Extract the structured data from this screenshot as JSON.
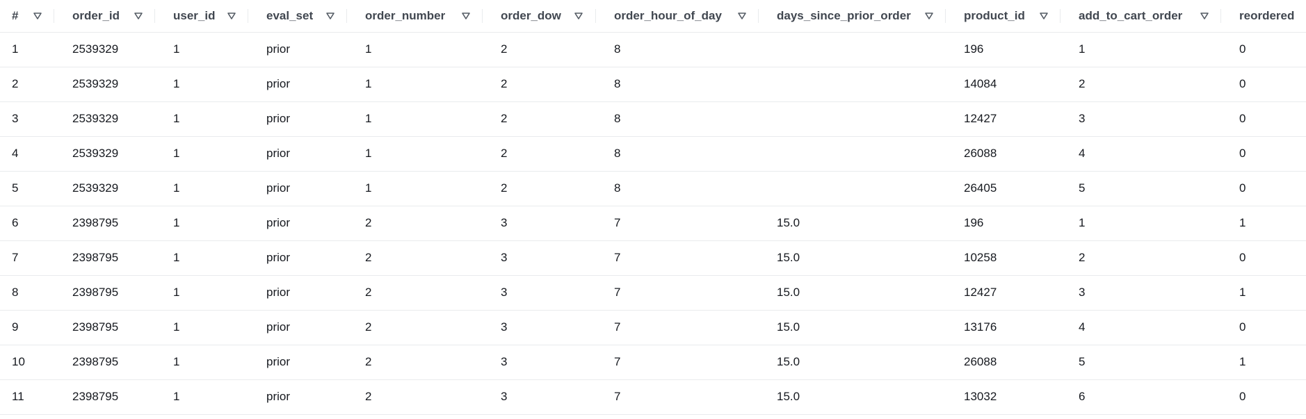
{
  "columns": [
    "#",
    "order_id",
    "user_id",
    "eval_set",
    "order_number",
    "order_dow",
    "order_hour_of_day",
    "days_since_prior_order",
    "product_id",
    "add_to_cart_order",
    "reordered"
  ],
  "sort_icon": "filter-triangle-icon",
  "rows": [
    [
      "1",
      "2539329",
      "1",
      "prior",
      "1",
      "2",
      "8",
      "",
      "196",
      "1",
      "0"
    ],
    [
      "2",
      "2539329",
      "1",
      "prior",
      "1",
      "2",
      "8",
      "",
      "14084",
      "2",
      "0"
    ],
    [
      "3",
      "2539329",
      "1",
      "prior",
      "1",
      "2",
      "8",
      "",
      "12427",
      "3",
      "0"
    ],
    [
      "4",
      "2539329",
      "1",
      "prior",
      "1",
      "2",
      "8",
      "",
      "26088",
      "4",
      "0"
    ],
    [
      "5",
      "2539329",
      "1",
      "prior",
      "1",
      "2",
      "8",
      "",
      "26405",
      "5",
      "0"
    ],
    [
      "6",
      "2398795",
      "1",
      "prior",
      "2",
      "3",
      "7",
      "15.0",
      "196",
      "1",
      "1"
    ],
    [
      "7",
      "2398795",
      "1",
      "prior",
      "2",
      "3",
      "7",
      "15.0",
      "10258",
      "2",
      "0"
    ],
    [
      "8",
      "2398795",
      "1",
      "prior",
      "2",
      "3",
      "7",
      "15.0",
      "12427",
      "3",
      "1"
    ],
    [
      "9",
      "2398795",
      "1",
      "prior",
      "2",
      "3",
      "7",
      "15.0",
      "13176",
      "4",
      "0"
    ],
    [
      "10",
      "2398795",
      "1",
      "prior",
      "2",
      "3",
      "7",
      "15.0",
      "26088",
      "5",
      "1"
    ],
    [
      "11",
      "2398795",
      "1",
      "prior",
      "2",
      "3",
      "7",
      "15.0",
      "13032",
      "6",
      "0"
    ]
  ]
}
